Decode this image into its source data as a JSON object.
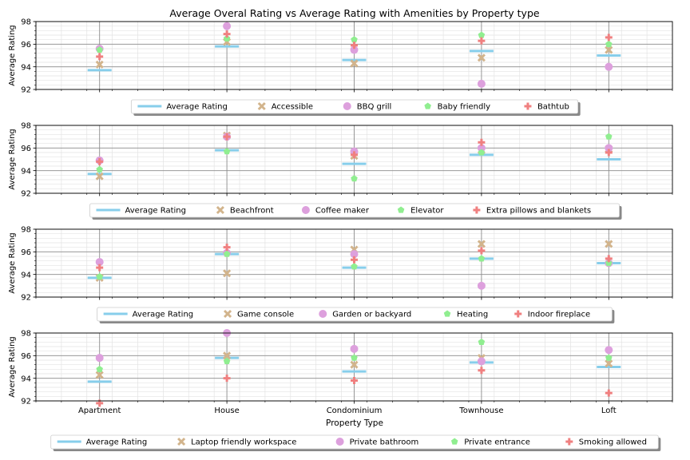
{
  "chart_data": {
    "type": "scatter",
    "title": "Average Overal Rating vs Average Rating with Amenities by Property type",
    "xlabel": "Property Type",
    "ylabel": "Average Rating",
    "categories": [
      "Apartment",
      "House",
      "Condominium",
      "Townhouse",
      "Loft"
    ],
    "ylim": [
      92,
      98
    ],
    "yticks": [
      92,
      94,
      96,
      98
    ],
    "grid": true,
    "legend_placement": "below each panel",
    "colors": {
      "average": "#87ceeb",
      "marker1": "#d2b48c",
      "marker2": "#dda0dd",
      "marker3": "#90ee90",
      "marker4": "#f08080"
    },
    "average_rating": {
      "name": "Average Rating",
      "values": [
        93.7,
        95.8,
        94.6,
        95.4,
        95.0
      ]
    },
    "panels": [
      {
        "series": [
          {
            "name": "Accessible",
            "marker": "x",
            "values": [
              94.2,
              96.2,
              94.3,
              94.8,
              95.5
            ]
          },
          {
            "name": "BBQ grill",
            "marker": "circle",
            "values": [
              95.6,
              97.6,
              95.5,
              92.5,
              94.0
            ]
          },
          {
            "name": "Baby friendly",
            "marker": "pentagon",
            "values": [
              95.5,
              96.5,
              96.4,
              96.8,
              96.0
            ]
          },
          {
            "name": "Bathtub",
            "marker": "plus",
            "values": [
              94.9,
              96.9,
              95.9,
              96.3,
              96.6
            ]
          }
        ]
      },
      {
        "series": [
          {
            "name": "Beachfront",
            "marker": "x",
            "values": [
              93.5,
              97.1,
              95.3,
              95.8,
              95.9
            ]
          },
          {
            "name": "Coffee maker",
            "marker": "circle",
            "values": [
              94.9,
              97.0,
              95.7,
              96.0,
              96.0
            ]
          },
          {
            "name": "Elevator",
            "marker": "pentagon",
            "values": [
              94.1,
              95.7,
              93.3,
              95.6,
              97.0
            ]
          },
          {
            "name": "Extra pillows and blankets",
            "marker": "plus",
            "values": [
              94.8,
              97.0,
              95.4,
              96.5,
              95.6
            ]
          }
        ]
      },
      {
        "series": [
          {
            "name": "Game console",
            "marker": "x",
            "values": [
              93.7,
              94.1,
              96.2,
              96.7,
              96.7
            ]
          },
          {
            "name": "Garden or backyard",
            "marker": "circle",
            "values": [
              95.1,
              95.9,
              95.8,
              93.0,
              95.0
            ]
          },
          {
            "name": "Heating",
            "marker": "pentagon",
            "values": [
              93.8,
              95.8,
              94.7,
              95.4,
              95.0
            ]
          },
          {
            "name": "Indoor fireplace",
            "marker": "plus",
            "values": [
              94.6,
              96.4,
              95.3,
              96.1,
              95.4
            ]
          }
        ]
      },
      {
        "series": [
          {
            "name": "Laptop friendly workspace",
            "marker": "x",
            "values": [
              94.3,
              96.0,
              95.2,
              95.8,
              95.3
            ]
          },
          {
            "name": "Private bathroom",
            "marker": "circle",
            "values": [
              95.8,
              98.0,
              96.6,
              95.5,
              96.5
            ]
          },
          {
            "name": "Private entrance",
            "marker": "pentagon",
            "values": [
              94.8,
              95.5,
              95.8,
              97.2,
              95.8
            ]
          },
          {
            "name": "Smoking allowed",
            "marker": "plus",
            "values": [
              91.8,
              94.0,
              93.8,
              94.7,
              92.7
            ]
          }
        ]
      }
    ]
  }
}
